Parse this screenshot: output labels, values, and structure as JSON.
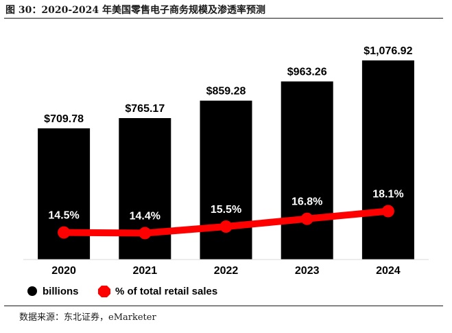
{
  "figure": {
    "title": "图 30：2020-2024 年美国零售电子商务规模及渗透率预测",
    "source": "数据来源：东北证券，eMarketer"
  },
  "chart_data": {
    "type": "bar",
    "categories": [
      "2020",
      "2021",
      "2022",
      "2023",
      "2024"
    ],
    "series": [
      {
        "name": "billions",
        "type": "bar",
        "values": [
          709.78,
          765.17,
          859.28,
          963.26,
          1076.92
        ],
        "labels": [
          "$709.78",
          "$765.17",
          "$859.28",
          "$963.26",
          "$1,076.92"
        ],
        "color": "#000000"
      },
      {
        "name": "% of total retail sales",
        "type": "line",
        "values": [
          14.5,
          14.4,
          15.5,
          16.8,
          18.1
        ],
        "labels": [
          "14.5%",
          "14.4%",
          "15.5%",
          "16.8%",
          "18.1%"
        ],
        "color": "#ff0000"
      }
    ],
    "legend_position": "bottom-left",
    "grid": false
  }
}
